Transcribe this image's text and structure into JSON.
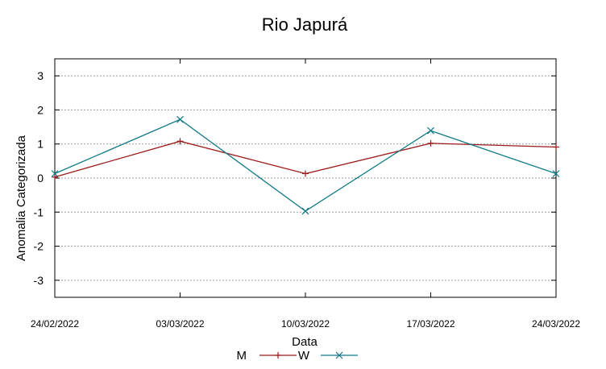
{
  "chart_data": {
    "type": "line",
    "title": "Rio Japurá",
    "xlabel": "Data",
    "ylabel": "Anomalia Categorizada",
    "x": [
      "24/02/2022",
      "03/03/2022",
      "10/03/2022",
      "17/03/2022",
      "24/03/2022"
    ],
    "xlim": [
      "24/02/2022",
      "24/03/2022"
    ],
    "ylim": [
      -3.5,
      3.5
    ],
    "yticks": [
      "3",
      "2",
      "1",
      "0",
      "-1",
      "-2",
      "-3"
    ],
    "grid": true,
    "legend_position": "bottom",
    "series": [
      {
        "name": "M",
        "color": "#9b1a1a",
        "marker": "plus",
        "values": [
          0.03,
          1.08,
          0.13,
          1.02,
          0.91
        ]
      },
      {
        "name": "W",
        "color": "#127a86",
        "marker": "x",
        "values": [
          0.13,
          1.72,
          -0.97,
          1.39,
          0.13
        ]
      }
    ]
  }
}
